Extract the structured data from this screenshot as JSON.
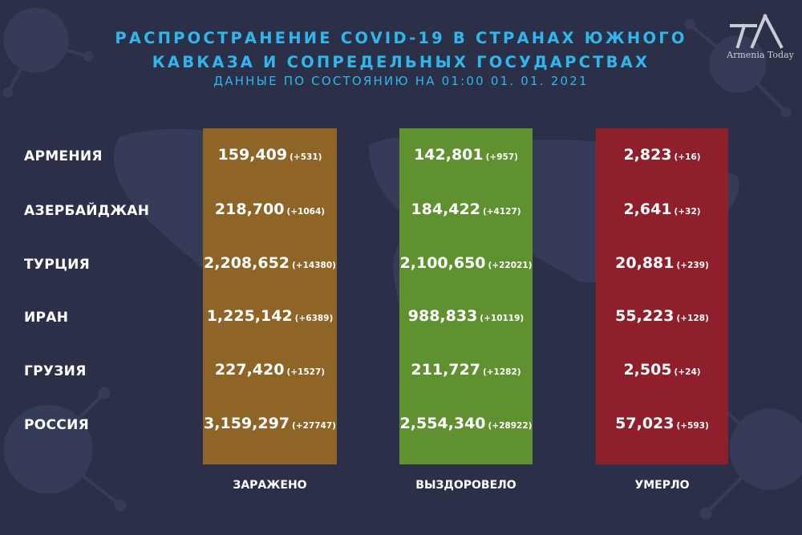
{
  "header": {
    "title_line1": "РАСПРОСТРАНЕНИЕ COVID-19 В СТРАНАХ ЮЖНОГО",
    "title_line2": "КАВКАЗА И СОПРЕДЕЛЬНЫХ ГОСУДАРСТВАХ",
    "subtitle": "ДАННЫЕ ПО СОСТОЯНИЮ НА 01:00  01. 01. 2021"
  },
  "logo": {
    "text": "Armenia Today",
    "icon": "armenia-today-logo-icon"
  },
  "colors": {
    "background": "#2b3048",
    "title": "#2fb6ec",
    "infected": "#8e6427",
    "recovered": "#5f9131",
    "deaths": "#8f1f2b"
  },
  "columns": {
    "infected": "ЗАРАЖЕНО",
    "recovered": "ВЫЗДОРОВЕЛО",
    "deaths": "УМЕРЛО"
  },
  "rows": [
    {
      "country": "АРМЕНИЯ",
      "infected": "159,409",
      "infected_delta": "(+531)",
      "recovered": "142,801",
      "recovered_delta": "(+957)",
      "deaths": "2,823",
      "deaths_delta": "(+16)"
    },
    {
      "country": "АЗЕРБАЙДЖАН",
      "infected": "218,700",
      "infected_delta": "(+1064)",
      "recovered": "184,422",
      "recovered_delta": "(+4127)",
      "deaths": "2,641",
      "deaths_delta": "(+32)"
    },
    {
      "country": "ТУРЦИЯ",
      "infected": "2,208,652",
      "infected_delta": "(+14380)",
      "recovered": "2,100,650",
      "recovered_delta": "(+22021)",
      "deaths": "20,881",
      "deaths_delta": "(+239)"
    },
    {
      "country": "ИРАН",
      "infected": "1,225,142",
      "infected_delta": "(+6389)",
      "recovered": "988,833",
      "recovered_delta": "(+10119)",
      "deaths": "55,223",
      "deaths_delta": "(+128)"
    },
    {
      "country": "ГРУЗИЯ",
      "infected": "227,420",
      "infected_delta": "(+1527)",
      "recovered": "211,727",
      "recovered_delta": "(+1282)",
      "deaths": "2,505",
      "deaths_delta": "(+24)"
    },
    {
      "country": "РОССИЯ",
      "infected": "3,159,297",
      "infected_delta": "(+27747)",
      "recovered": "2,554,340",
      "recovered_delta": "(+28922)",
      "deaths": "57,023",
      "deaths_delta": "(+593)"
    }
  ]
}
